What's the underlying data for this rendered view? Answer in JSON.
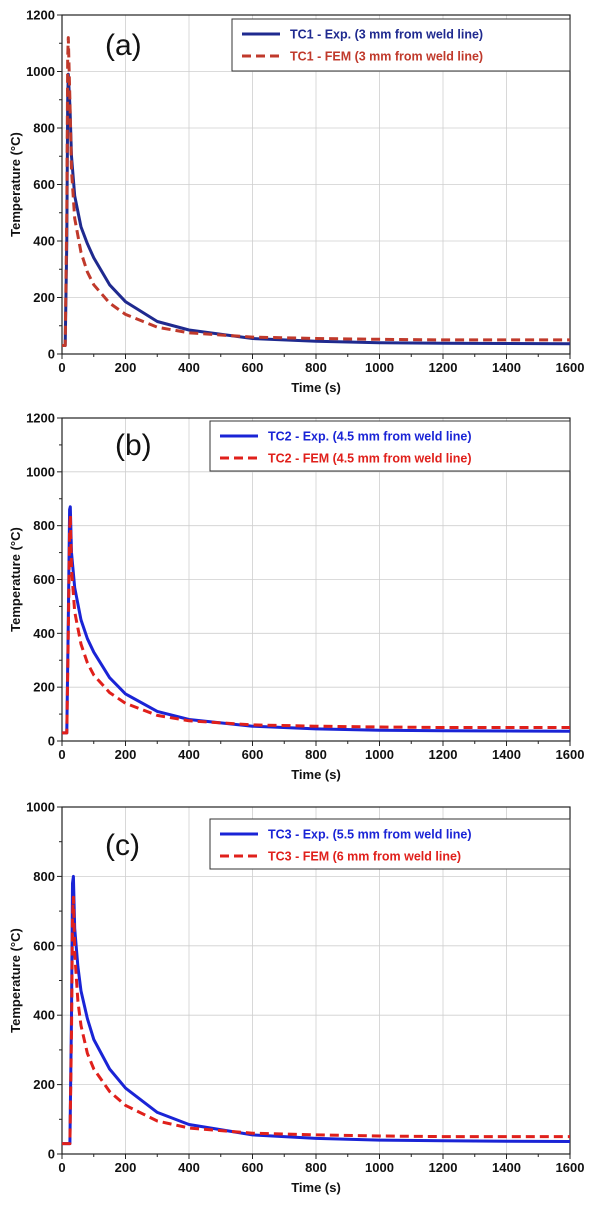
{
  "chart_data": [
    {
      "type": "line",
      "panel_label": "(a)",
      "xlabel": "Time (s)",
      "ylabel": "Temperature (°C)",
      "xlim": [
        0,
        1600
      ],
      "ylim": [
        0,
        1200
      ],
      "xticks": [
        0,
        200,
        400,
        600,
        800,
        1000,
        1200,
        1400,
        1600
      ],
      "yticks": [
        0,
        200,
        400,
        600,
        800,
        1000,
        1200
      ],
      "grid": true,
      "legend_position": "top-right",
      "series": [
        {
          "name": "TC1 - Exp. (3 mm from weld line)",
          "color": "#1f2a8f",
          "dash": "solid",
          "x": [
            0,
            10,
            15,
            18,
            20,
            25,
            30,
            40,
            60,
            80,
            100,
            150,
            200,
            300,
            400,
            600,
            800,
            1000,
            1200,
            1400,
            1600
          ],
          "y": [
            30,
            30,
            400,
            900,
            990,
            880,
            700,
            560,
            450,
            390,
            340,
            245,
            185,
            115,
            85,
            55,
            45,
            40,
            38,
            37,
            36
          ]
        },
        {
          "name": "TC1 - FEM (3 mm from weld line)",
          "color": "#c0392b",
          "dash": "dashed",
          "x": [
            0,
            10,
            15,
            18,
            20,
            25,
            30,
            40,
            60,
            80,
            100,
            150,
            200,
            300,
            400,
            600,
            800,
            1000,
            1200,
            1400,
            1600
          ],
          "y": [
            30,
            30,
            500,
            1050,
            1120,
            900,
            650,
            480,
            360,
            290,
            245,
            180,
            140,
            95,
            75,
            60,
            55,
            52,
            50,
            50,
            50
          ]
        }
      ]
    },
    {
      "type": "line",
      "panel_label": "(b)",
      "xlabel": "Time (s)",
      "ylabel": "Temperature (°C)",
      "xlim": [
        0,
        1600
      ],
      "ylim": [
        0,
        1200
      ],
      "xticks": [
        0,
        200,
        400,
        600,
        800,
        1000,
        1200,
        1400,
        1600
      ],
      "yticks": [
        0,
        200,
        400,
        600,
        800,
        1000,
        1200
      ],
      "grid": true,
      "legend_position": "top-right",
      "series": [
        {
          "name": "TC2 - Exp. (4.5 mm from weld line)",
          "color": "#1a24d6",
          "dash": "solid",
          "x": [
            0,
            15,
            20,
            24,
            26,
            30,
            40,
            60,
            80,
            100,
            150,
            200,
            300,
            400,
            600,
            800,
            1000,
            1200,
            1400,
            1600
          ],
          "y": [
            30,
            30,
            450,
            860,
            870,
            700,
            570,
            450,
            380,
            330,
            235,
            175,
            110,
            80,
            55,
            45,
            40,
            38,
            37,
            36
          ]
        },
        {
          "name": "TC2 - FEM (4.5 mm from weld line)",
          "color": "#e0201b",
          "dash": "dashed",
          "x": [
            0,
            15,
            20,
            24,
            26,
            30,
            40,
            60,
            80,
            100,
            150,
            200,
            300,
            400,
            600,
            800,
            1000,
            1200,
            1400,
            1600
          ],
          "y": [
            30,
            30,
            400,
            780,
            840,
            640,
            480,
            360,
            290,
            245,
            180,
            140,
            95,
            75,
            60,
            55,
            52,
            50,
            50,
            50
          ]
        }
      ]
    },
    {
      "type": "line",
      "panel_label": "(c)",
      "xlabel": "Time (s)",
      "ylabel": "Temperature (°C)",
      "xlim": [
        0,
        1600
      ],
      "ylim": [
        0,
        1000
      ],
      "xticks": [
        0,
        200,
        400,
        600,
        800,
        1000,
        1200,
        1400,
        1600
      ],
      "yticks": [
        0,
        200,
        400,
        600,
        800,
        1000
      ],
      "grid": true,
      "legend_position": "top-right",
      "series": [
        {
          "name": "TC3 - Exp. (5.5 mm from weld line)",
          "color": "#1a24d6",
          "dash": "solid",
          "x": [
            0,
            25,
            30,
            33,
            36,
            40,
            50,
            60,
            80,
            100,
            150,
            200,
            300,
            400,
            600,
            800,
            1000,
            1200,
            1400,
            1600
          ],
          "y": [
            30,
            30,
            400,
            780,
            800,
            650,
            540,
            470,
            390,
            330,
            245,
            190,
            120,
            85,
            55,
            45,
            40,
            38,
            37,
            36
          ]
        },
        {
          "name": "TC3 - FEM (6 mm from weld line)",
          "color": "#e0201b",
          "dash": "dashed",
          "x": [
            0,
            25,
            30,
            33,
            36,
            40,
            50,
            60,
            80,
            100,
            150,
            200,
            300,
            400,
            600,
            800,
            1000,
            1200,
            1400,
            1600
          ],
          "y": [
            30,
            30,
            350,
            680,
            740,
            580,
            440,
            370,
            290,
            245,
            180,
            140,
            95,
            75,
            60,
            55,
            52,
            50,
            50,
            50
          ]
        }
      ]
    }
  ]
}
